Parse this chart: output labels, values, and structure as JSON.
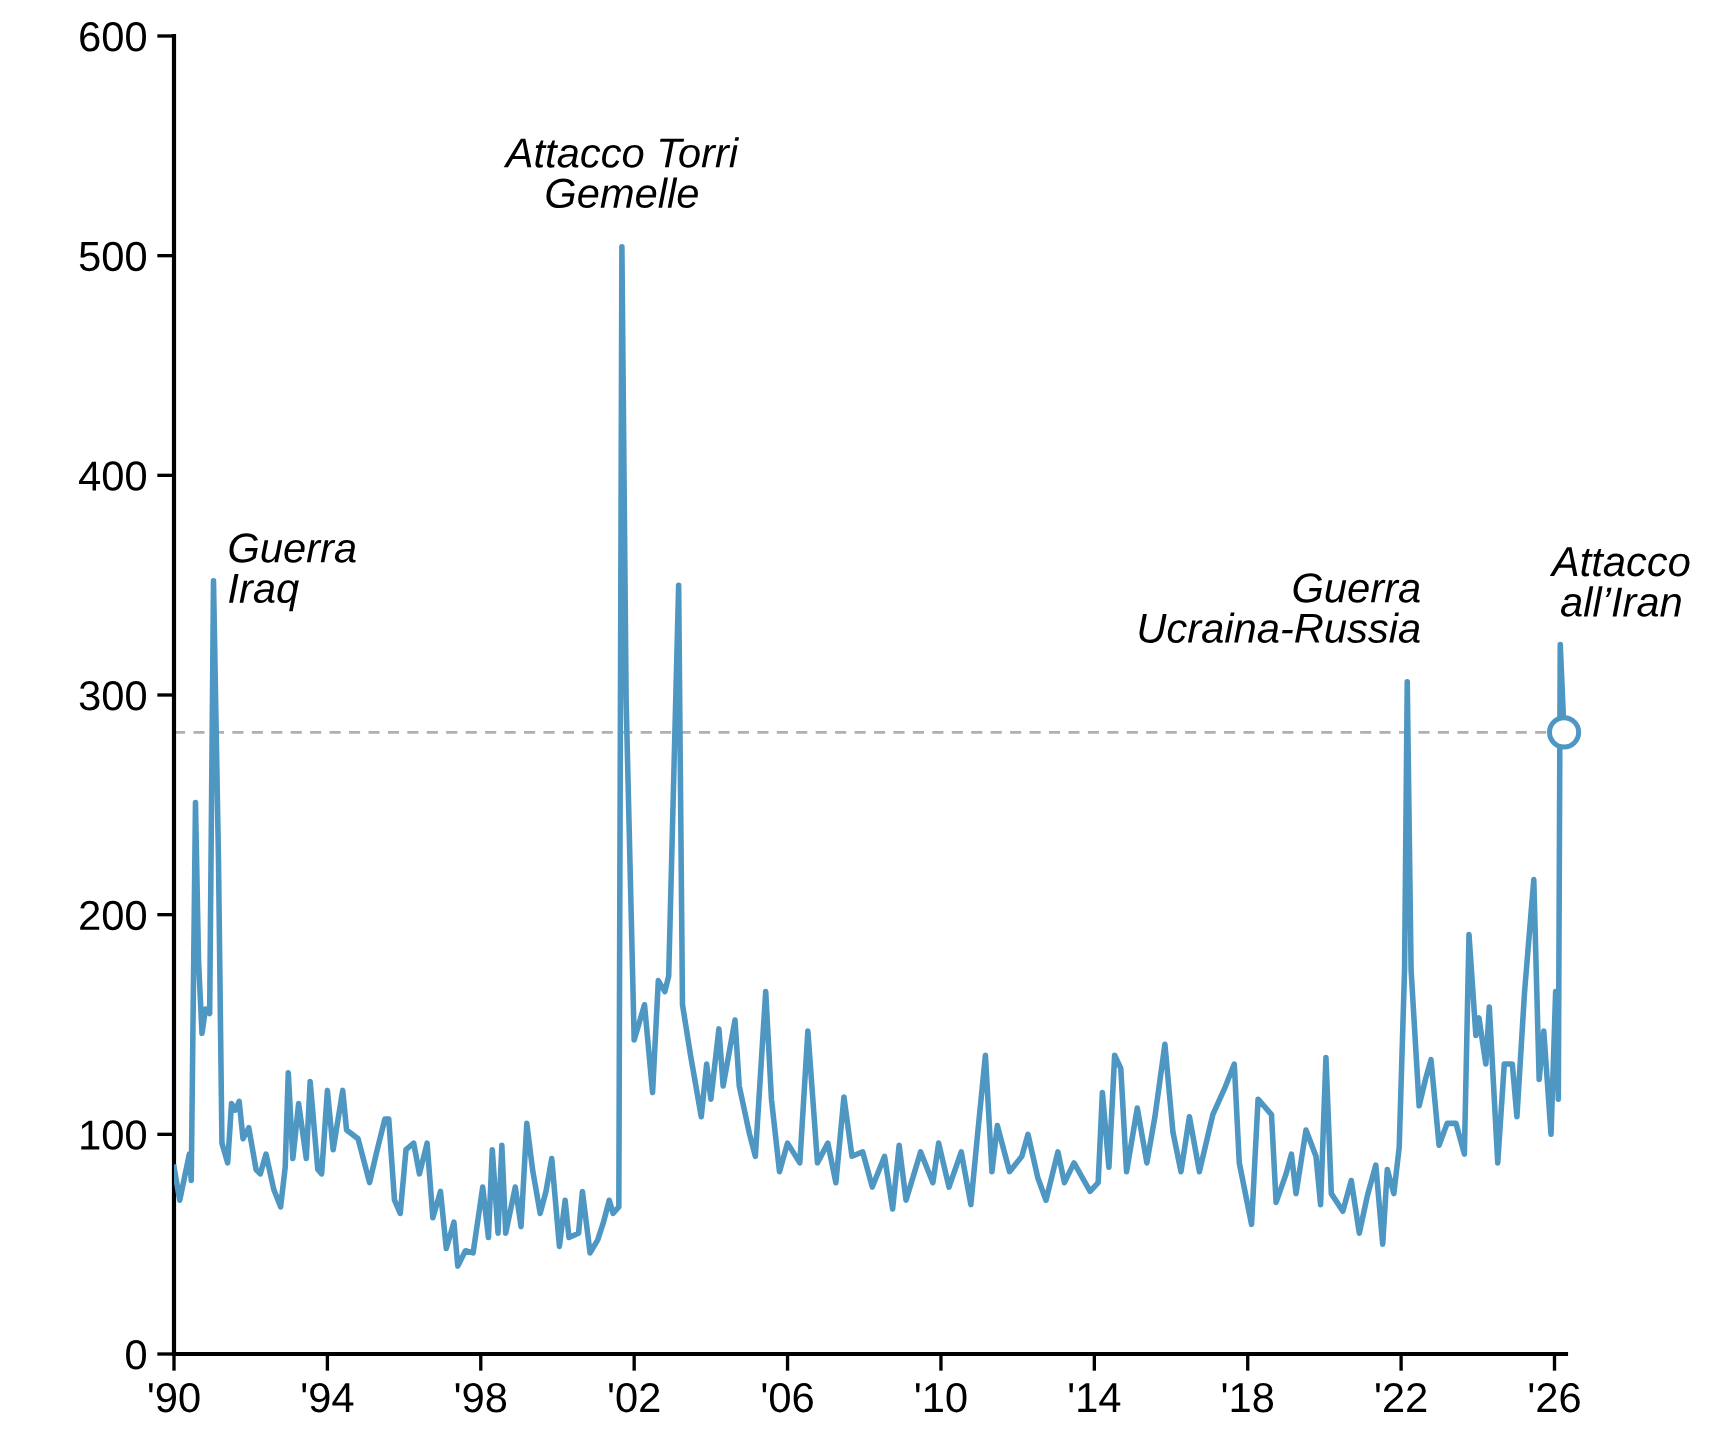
{
  "chart_data": {
    "type": "line",
    "xlim": [
      1990,
      2026.3
    ],
    "ylim": [
      0,
      600
    ],
    "xticks": [
      {
        "value": 1990,
        "label": "'90"
      },
      {
        "value": 1994,
        "label": "'94"
      },
      {
        "value": 1998,
        "label": "'98"
      },
      {
        "value": 2002,
        "label": "'02"
      },
      {
        "value": 2006,
        "label": "'06"
      },
      {
        "value": 2010,
        "label": "'10"
      },
      {
        "value": 2014,
        "label": "'14"
      },
      {
        "value": 2018,
        "label": "'18"
      },
      {
        "value": 2022,
        "label": "'22"
      },
      {
        "value": 2026,
        "label": "'26"
      }
    ],
    "yticks": [
      0,
      100,
      200,
      300,
      400,
      500,
      600
    ],
    "grid": false,
    "legend": false,
    "series": [
      {
        "color": "#4e97c3",
        "marker": "none",
        "line_style": "solid",
        "x": [
          1990.0,
          1990.15,
          1990.4,
          1990.45,
          1990.56,
          1990.64,
          1990.73,
          1990.82,
          1990.93,
          1991.03,
          1991.16,
          1991.25,
          1991.4,
          1991.5,
          1991.6,
          1991.7,
          1991.8,
          1991.95,
          1992.14,
          1992.25,
          1992.4,
          1992.6,
          1992.78,
          1992.9,
          1992.98,
          1993.1,
          1993.25,
          1993.45,
          1993.55,
          1993.75,
          1993.85,
          1994.0,
          1994.15,
          1994.4,
          1994.5,
          1994.8,
          1995.1,
          1995.3,
          1995.5,
          1995.6,
          1995.75,
          1995.9,
          1996.05,
          1996.25,
          1996.4,
          1996.6,
          1996.75,
          1996.95,
          1997.1,
          1997.3,
          1997.4,
          1997.6,
          1997.8,
          1998.05,
          1998.2,
          1998.3,
          1998.45,
          1998.55,
          1998.65,
          1998.9,
          1999.05,
          1999.2,
          1999.35,
          1999.55,
          1999.7,
          1999.85,
          2000.05,
          2000.2,
          2000.3,
          2000.55,
          2000.65,
          2000.85,
          2001.05,
          2001.2,
          2001.35,
          2001.45,
          2001.6,
          2001.68,
          2001.79,
          2002.0,
          2002.27,
          2002.48,
          2002.63,
          2002.8,
          2002.9,
          2003.16,
          2003.26,
          2003.47,
          2003.75,
          2003.89,
          2004.0,
          2004.21,
          2004.32,
          2004.63,
          2004.74,
          2005.01,
          2005.16,
          2005.43,
          2005.58,
          2005.79,
          2006.0,
          2006.32,
          2006.53,
          2006.78,
          2007.05,
          2007.26,
          2007.47,
          2007.68,
          2007.96,
          2008.21,
          2008.53,
          2008.74,
          2008.91,
          2009.09,
          2009.47,
          2009.79,
          2009.94,
          2010.21,
          2010.53,
          2010.78,
          2010.95,
          2011.16,
          2011.33,
          2011.47,
          2011.79,
          2012.11,
          2012.27,
          2012.53,
          2012.74,
          2013.05,
          2013.22,
          2013.47,
          2013.89,
          2014.1,
          2014.21,
          2014.38,
          2014.53,
          2014.69,
          2014.84,
          2015.12,
          2015.37,
          2015.58,
          2015.84,
          2016.05,
          2016.26,
          2016.48,
          2016.74,
          2017.09,
          2017.4,
          2017.65,
          2017.78,
          2018.1,
          2018.27,
          2018.62,
          2018.74,
          2019.0,
          2019.14,
          2019.26,
          2019.52,
          2019.78,
          2019.9,
          2020.04,
          2020.18,
          2020.48,
          2020.7,
          2020.91,
          2021.12,
          2021.34,
          2021.52,
          2021.64,
          2021.81,
          2021.95,
          2022.09,
          2022.16,
          2022.26,
          2022.47,
          2022.65,
          2022.78,
          2022.99,
          2023.2,
          2023.43,
          2023.65,
          2023.77,
          2023.95,
          2024.03,
          2024.21,
          2024.3,
          2024.52,
          2024.69,
          2024.9,
          2025.02,
          2025.22,
          2025.46,
          2025.6,
          2025.72,
          2025.91,
          2026.03,
          2026.1,
          2026.15,
          2026.25
        ],
        "values": [
          85,
          70,
          91,
          79,
          251,
          179,
          146,
          157,
          155,
          352,
          225,
          96,
          87,
          114,
          111,
          115,
          98,
          103,
          84,
          82,
          91,
          75,
          67,
          85,
          128,
          89,
          114,
          89,
          124,
          84,
          82,
          120,
          93,
          120,
          102,
          98,
          78,
          93,
          107,
          107,
          70,
          64,
          93,
          96,
          82,
          96,
          62,
          74,
          48,
          60,
          40,
          47,
          46,
          76,
          53,
          93,
          55,
          95,
          55,
          76,
          58,
          105,
          84,
          64,
          74,
          89,
          49,
          70,
          53,
          55,
          74,
          46,
          52,
          60,
          70,
          64,
          67,
          504,
          298,
          143,
          159,
          119,
          170,
          165,
          172,
          350,
          159,
          136,
          108,
          132,
          116,
          148,
          122,
          152,
          122,
          100,
          90,
          165,
          116,
          83,
          96,
          87,
          147,
          87,
          96,
          78,
          117,
          90,
          92,
          76,
          90,
          66,
          95,
          70,
          92,
          78,
          96,
          76,
          92,
          68,
          99,
          136,
          83,
          104,
          83,
          90,
          100,
          80,
          70,
          92,
          78,
          87,
          74,
          78,
          119,
          85,
          136,
          130,
          83,
          112,
          87,
          108,
          141,
          101,
          83,
          108,
          83,
          109,
          121,
          132,
          87,
          59,
          116,
          109,
          69,
          82,
          91,
          73,
          102,
          90,
          68,
          135,
          73,
          65,
          79,
          55,
          72,
          86,
          50,
          84,
          73,
          94,
          175,
          306,
          175,
          113,
          126,
          134,
          95,
          105,
          105,
          91,
          191,
          145,
          153,
          132,
          158,
          87,
          132,
          132,
          108,
          165,
          216,
          125,
          147,
          100,
          165,
          116,
          323,
          283
        ]
      },
      {
        "type": "scatter",
        "color": "#4e97c3",
        "marker": "circle",
        "x": [
          2026.25
        ],
        "values": [
          283
        ]
      }
    ],
    "ref_lines": [
      {
        "axis": "y",
        "value": 283,
        "color": "#b0b0b0",
        "line_style": "dashed"
      }
    ],
    "annotations": [
      {
        "text": "Guerra\nIraq",
        "x": 1991.03,
        "y": 352
      },
      {
        "text": "Attacco Torri\nGemelle",
        "x": 2001.68,
        "y": 504
      },
      {
        "text": "Guerra\nUcraina-Russia",
        "x": 2022.16,
        "y": 306
      },
      {
        "text": "Attacco\nall’Iran",
        "x": 2026.15,
        "y": 323
      }
    ]
  }
}
